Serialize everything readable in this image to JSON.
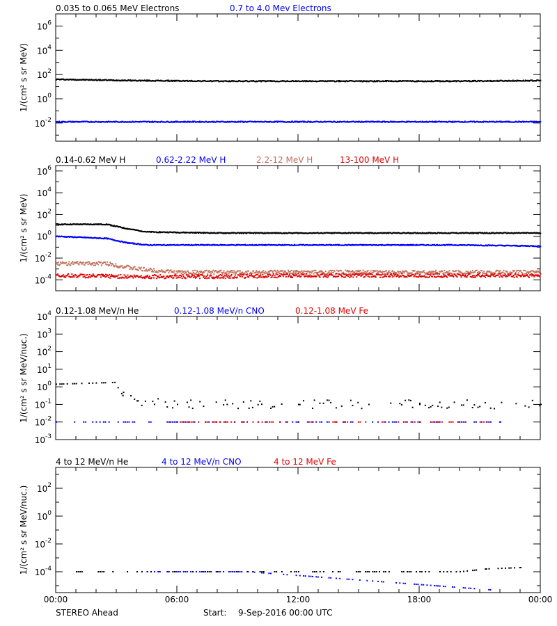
{
  "footer": {
    "mission": "STEREO Ahead",
    "start_label": "Start:",
    "start_value": "9-Sep-2016 00:00 UTC"
  },
  "time_axis": {
    "range_hours": [
      0,
      24
    ],
    "tick_labels": [
      "00:00",
      "06:00",
      "12:00",
      "18:00",
      "00:00"
    ],
    "tick_hours": [
      0,
      6,
      12,
      18,
      24
    ]
  },
  "chart_data": [
    {
      "type": "scatter",
      "y_scale": "log",
      "ylabel": "1/(cm² s sr MeV)",
      "ylim_exponent": [
        -3.5,
        7
      ],
      "y_tick_exponents": [
        -2,
        0,
        2,
        4,
        6
      ],
      "legend_placement": "top",
      "series": [
        {
          "name": "0.035 to 0.065 MeV Electrons",
          "color": "#000000",
          "x": [
            0,
            2,
            4,
            8,
            12,
            16,
            20,
            24
          ],
          "log10_y": [
            1.6,
            1.55,
            1.5,
            1.45,
            1.45,
            1.45,
            1.45,
            1.5
          ]
        },
        {
          "name": "0.7 to 4.0 Mev Electrons",
          "color": "#0000ff",
          "x": [
            0,
            4,
            8,
            12,
            16,
            20,
            24
          ],
          "log10_y": [
            -1.9,
            -1.9,
            -1.9,
            -1.9,
            -1.9,
            -1.9,
            -1.9
          ]
        }
      ]
    },
    {
      "type": "scatter",
      "y_scale": "log",
      "ylabel": "1/(cm² s sr MeV)",
      "ylim_exponent": [
        -5,
        6.5
      ],
      "y_tick_exponents": [
        -4,
        -2,
        0,
        2,
        4,
        6
      ],
      "legend_placement": "top",
      "series": [
        {
          "name": "0.14-0.62 MeV H",
          "color": "#000000",
          "x": [
            0,
            2.5,
            3.5,
            4.5,
            8,
            12,
            16,
            20,
            24
          ],
          "log10_y": [
            1.1,
            1.1,
            0.7,
            0.4,
            0.3,
            0.3,
            0.3,
            0.3,
            0.3
          ]
        },
        {
          "name": "0.62-2.22 MeV H",
          "color": "#0000ff",
          "x": [
            0,
            2.5,
            3.5,
            4.5,
            8,
            12,
            16,
            20,
            24
          ],
          "log10_y": [
            0.0,
            -0.2,
            -0.6,
            -0.8,
            -0.8,
            -0.8,
            -0.8,
            -0.8,
            -0.9
          ]
        },
        {
          "name": "2.2-12 MeV H",
          "color": "#c0705a",
          "x": [
            0,
            2.5,
            4,
            6,
            12,
            18,
            24
          ],
          "log10_y": [
            -2.5,
            -2.5,
            -3.0,
            -3.3,
            -3.3,
            -3.3,
            -3.3
          ]
        },
        {
          "name": "13-100 MeV H",
          "color": "#e00000",
          "x": [
            0,
            4,
            8,
            12,
            16,
            20,
            24
          ],
          "log10_y": [
            -3.6,
            -3.7,
            -3.7,
            -3.6,
            -3.6,
            -3.6,
            -3.6
          ]
        }
      ]
    },
    {
      "type": "scatter",
      "y_scale": "log",
      "ylabel": "1/(cm² s sr MeV/nuc.)",
      "ylim_exponent": [
        -3,
        4
      ],
      "y_tick_exponents": [
        -3,
        -2,
        -1,
        0,
        1,
        2,
        3,
        4
      ],
      "legend_placement": "top",
      "series": [
        {
          "name": "0.12-1.08 MeV/n He",
          "color": "#000000",
          "x": [
            0,
            2.9,
            3.3,
            4,
            6,
            12,
            18,
            24
          ],
          "log10_y": [
            0.15,
            0.25,
            -0.5,
            -0.8,
            -1.0,
            -1.0,
            -1.0,
            -1.0
          ]
        },
        {
          "name": "0.12-1.08 MeV/n CNO",
          "color": "#0000ff",
          "x": [
            0,
            6,
            12,
            18,
            22
          ],
          "log10_y": [
            -2.0,
            -2.0,
            -2.0,
            -2.0,
            -2.0
          ]
        },
        {
          "name": "0.12-1.08 MeV Fe",
          "color": "#e00000",
          "x": [
            5.6,
            8.4,
            14.2,
            17.2,
            21.3
          ],
          "log10_y": [
            -2.0,
            -2.0,
            -2.0,
            -2.0,
            -2.0
          ]
        }
      ]
    },
    {
      "type": "scatter",
      "y_scale": "log",
      "ylabel": "1/(cm² s sr MeV/nuc.)",
      "ylim_exponent": [
        -5.5,
        3.5
      ],
      "y_tick_exponents": [
        -4,
        -2,
        0,
        2
      ],
      "legend_placement": "top",
      "series": [
        {
          "name": "4 to 12 MeV/n He",
          "color": "#000000",
          "x": [
            1,
            4,
            8,
            12,
            16,
            20,
            21.3,
            23
          ],
          "log10_y": [
            -4,
            -4,
            -4,
            -4,
            -4,
            -4,
            -3.8,
            -3.7
          ]
        },
        {
          "name": "4 to 12 MeV/n CNO",
          "color": "#0000ff",
          "x": [
            4.5,
            9.5,
            21.5
          ],
          "log10_y": [
            -4,
            -4,
            -5.3
          ]
        },
        {
          "name": "4 to 12 MeV Fe",
          "color": "#e00000",
          "x": [],
          "log10_y": []
        }
      ]
    }
  ]
}
